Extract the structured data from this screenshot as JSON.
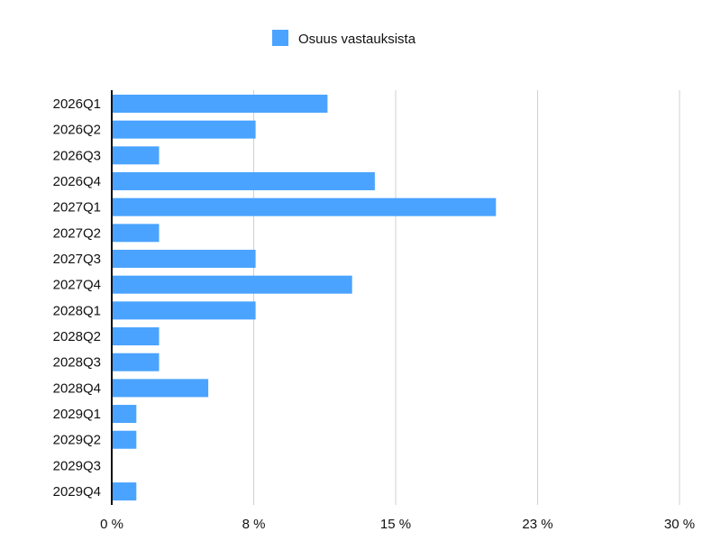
{
  "chart_data": {
    "type": "bar",
    "orientation": "horizontal",
    "categories": [
      "2026Q1",
      "2026Q2",
      "2026Q3",
      "2026Q4",
      "2027Q1",
      "2027Q2",
      "2027Q3",
      "2027Q4",
      "2028Q1",
      "2028Q2",
      "2028Q3",
      "2028Q4",
      "2029Q1",
      "2029Q2",
      "2029Q3",
      "2029Q4"
    ],
    "series": [
      {
        "name": "Osuus vastauksista",
        "values": [
          11.4,
          7.6,
          2.5,
          13.9,
          20.3,
          2.5,
          7.6,
          12.7,
          7.6,
          2.5,
          2.5,
          5.1,
          1.3,
          1.3,
          0,
          1.3
        ]
      }
    ],
    "xlim": [
      0,
      30
    ],
    "x_ticks": [
      0,
      7.5,
      15,
      22.5,
      30
    ],
    "x_tick_labels": [
      "0 %",
      "8 %",
      "15 %",
      "23 %",
      "30 %"
    ],
    "title": "",
    "xlabel": "",
    "ylabel": "",
    "grid": true,
    "legend_position": "top-center",
    "colors": {
      "bar": "#4aa3ff",
      "grid": "#d0d0d0",
      "axis": "#111111"
    }
  }
}
